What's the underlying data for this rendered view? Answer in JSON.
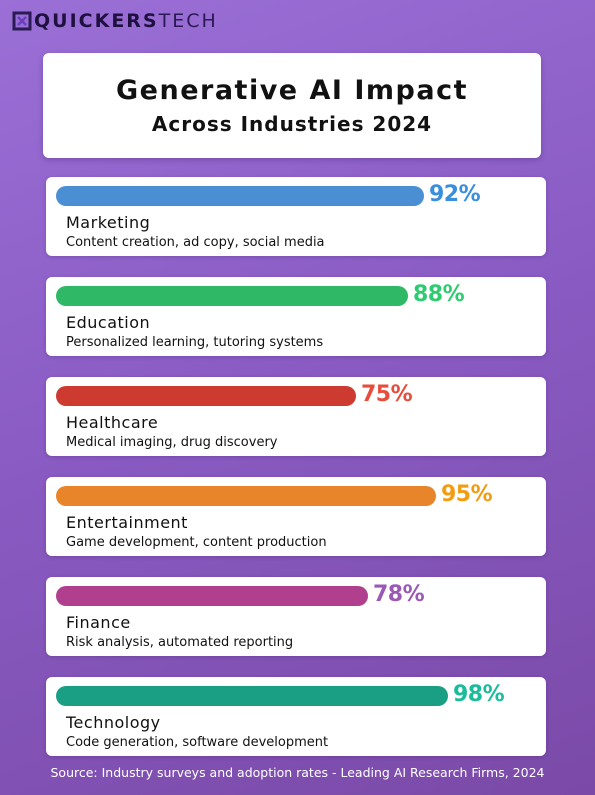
{
  "brand": {
    "name_bold": "QUICKERS",
    "name_light": "TECH"
  },
  "chart_data": {
    "type": "bar",
    "orientation": "horizontal",
    "title": "Generative AI Impact",
    "subtitle": "Across Industries 2024",
    "value_suffix": "%",
    "xlim": [
      0,
      100
    ],
    "items": [
      {
        "category": "Marketing",
        "description": "Content creation, ad copy, social media",
        "value": 92,
        "value_label": "92%",
        "color": "#4a8fd4",
        "label_color": "#3a8ede"
      },
      {
        "category": "Education",
        "description": "Personalized learning, tutoring systems",
        "value": 88,
        "value_label": "88%",
        "color": "#2fb865",
        "label_color": "#2ecc71"
      },
      {
        "category": "Healthcare",
        "description": "Medical imaging, drug discovery",
        "value": 75,
        "value_label": "75%",
        "color": "#cc3a30",
        "label_color": "#e74c3c"
      },
      {
        "category": "Entertainment",
        "description": "Game development, content production",
        "value": 95,
        "value_label": "95%",
        "color": "#e8852a",
        "label_color": "#f39c12"
      },
      {
        "category": "Finance",
        "description": "Risk analysis, automated reporting",
        "value": 78,
        "value_label": "78%",
        "color": "#b0408e",
        "label_color": "#9b59b6"
      },
      {
        "category": "Technology",
        "description": "Code generation, software development",
        "value": 98,
        "value_label": "98%",
        "color": "#1a9e84",
        "label_color": "#1abc9c"
      }
    ],
    "source": "Source: Industry surveys and adoption rates - Leading AI Research Firms, 2024"
  }
}
